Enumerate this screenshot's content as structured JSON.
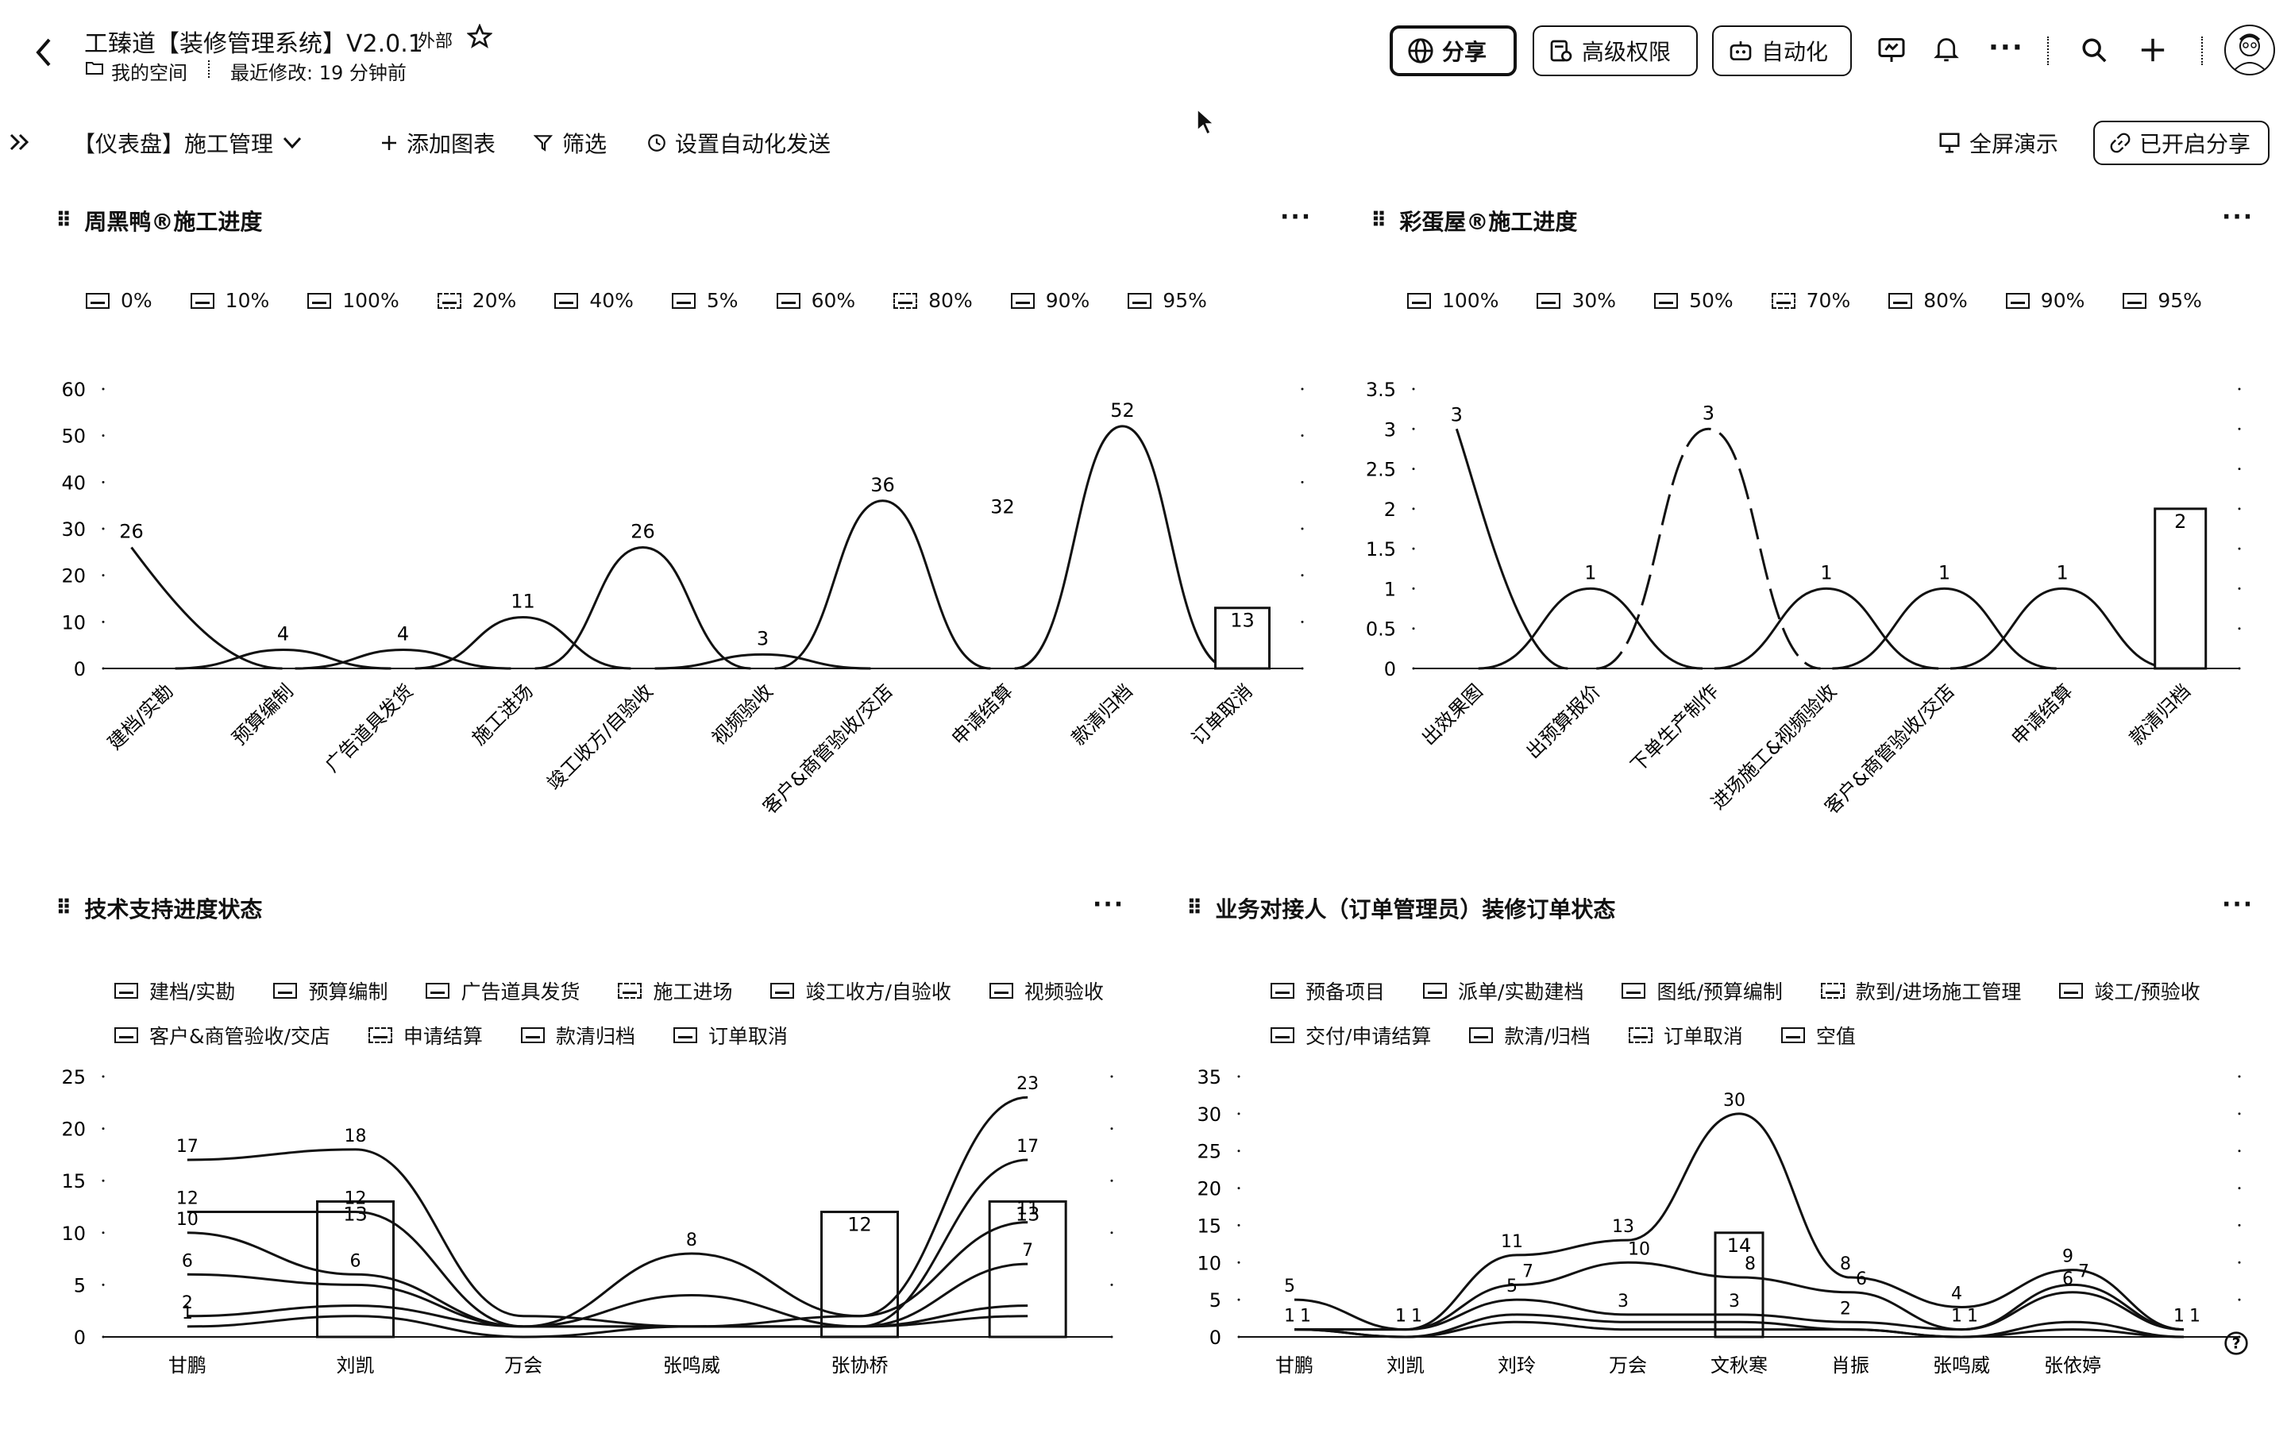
{
  "header": {
    "title": "工臻道【装修管理系统】V2.0.1",
    "tag": "外部",
    "space": "我的空间",
    "modified": "最近修改: 19 分钟前",
    "share_button": "分享",
    "permissions_button": "高级权限",
    "automation_button": "自动化"
  },
  "toolbar": {
    "dashboard_name": "【仪表盘】施工管理",
    "add_chart": "添加图表",
    "filter": "筛选",
    "auto_send": "设置自动化发送",
    "fullscreen": "全屏演示",
    "share_on": "已开启分享"
  },
  "panels": {
    "p1": {
      "title": "周黑鸭®施工进度",
      "legend": [
        "0%",
        "10%",
        "100%",
        "20%",
        "40%",
        "5%",
        "60%",
        "80%",
        "90%",
        "95%"
      ]
    },
    "p2": {
      "title": "彩蛋屋®施工进度",
      "legend": [
        "100%",
        "30%",
        "50%",
        "70%",
        "80%",
        "90%",
        "95%"
      ]
    },
    "p3": {
      "title": "技术支持进度状态",
      "legend": [
        "建档/实勘",
        "预算编制",
        "广告道具发货",
        "施工进场",
        "竣工收方/自验收",
        "视频验收",
        "客户&商管验收/交店",
        "申请结算",
        "款清归档",
        "订单取消"
      ]
    },
    "p4": {
      "title": "业务对接人（订单管理员）装修订单状态",
      "legend": [
        "预备项目",
        "派单/实勘建档",
        "图纸/预算编制",
        "款到/进场施工管理",
        "竣工/预验收",
        "交付/申请结算",
        "款清/归档",
        "订单取消",
        "空值"
      ]
    }
  },
  "chart_data": [
    {
      "type": "line",
      "title": "周黑鸭®施工进度",
      "categories": [
        "建档/实勘",
        "预算编制",
        "广告道具发货",
        "施工进场",
        "竣工收方/自验收",
        "视频验收",
        "客户&商管验收/交店",
        "申请结算",
        "款清归档",
        "订单取消"
      ],
      "ylim": [
        0,
        60
      ],
      "yticks": [
        0,
        10,
        20,
        30,
        40,
        50,
        60
      ],
      "peaks": [
        {
          "category": "建档/实勘",
          "value": 26
        },
        {
          "category": "预算编制",
          "value": 4
        },
        {
          "category": "广告道具发货",
          "value": 4
        },
        {
          "category": "施工进场",
          "value": 11
        },
        {
          "category": "竣工收方/自验收",
          "value": 26
        },
        {
          "category": "视频验收",
          "value": 3
        },
        {
          "category": "客户&商管验收/交店",
          "value": 36
        },
        {
          "category": "申请结算",
          "value": 32
        },
        {
          "category": "款清归档",
          "value": 52
        }
      ],
      "bar": {
        "category": "订单取消",
        "value": 13,
        "label": "13"
      }
    },
    {
      "type": "line",
      "title": "彩蛋屋®施工进度",
      "categories": [
        "出效果图",
        "出预算报价",
        "下单生产制作",
        "进场施工&视频验收",
        "客户&商管验收/交店",
        "申请结算",
        "款清归档"
      ],
      "ylim": [
        0,
        3.5
      ],
      "yticks": [
        0,
        0.5,
        1,
        1.5,
        2,
        2.5,
        3,
        3.5
      ],
      "peaks": [
        {
          "category": "出效果图",
          "value": 3
        },
        {
          "category": "出预算报价",
          "value": 1
        },
        {
          "category": "下单生产制作",
          "value": 3
        },
        {
          "category": "进场施工&视频验收",
          "value": 1
        },
        {
          "category": "客户&商管验收/交店",
          "value": 1
        },
        {
          "category": "申请结算",
          "value": 1
        }
      ],
      "bar": {
        "category": "款清归档",
        "value": 2,
        "label": "2"
      }
    },
    {
      "type": "line",
      "title": "技术支持进度状态",
      "categories": [
        "甘鹏",
        "刘凯",
        "万会",
        "张鸣威",
        "张协桥",
        ""
      ],
      "ylim": [
        0,
        25
      ],
      "yticks": [
        0,
        5,
        10,
        15,
        20,
        25
      ],
      "series": [
        {
          "values": [
            17,
            18,
            2,
            1,
            2,
            23
          ]
        },
        {
          "values": [
            12,
            12,
            1,
            4,
            1,
            17
          ]
        },
        {
          "values": [
            10,
            6,
            1,
            8,
            2,
            11
          ]
        },
        {
          "values": [
            6,
            5,
            1,
            1,
            1,
            7
          ]
        },
        {
          "values": [
            2,
            3,
            1,
            1,
            1,
            3
          ]
        },
        {
          "values": [
            1,
            2,
            0,
            1,
            1,
            2
          ]
        }
      ],
      "bars": [
        {
          "category": "刘凯",
          "value": 13,
          "label": "13"
        },
        {
          "category": "张协桥",
          "value": 12,
          "label": "12"
        },
        {
          "category": "",
          "value": 13,
          "label": "13"
        }
      ],
      "extra_labels": [
        "17",
        "18",
        "12",
        "12",
        "10",
        "6",
        "2",
        "8",
        "4",
        "1",
        "1",
        "23",
        "17"
      ]
    },
    {
      "type": "line",
      "title": "业务对接人（订单管理员）装修订单状态",
      "categories": [
        "甘鹏",
        "刘凯",
        "刘玲",
        "万会",
        "文秋寒",
        "肖振",
        "张鸣威",
        "张依婷",
        ""
      ],
      "ylim": [
        0,
        35
      ],
      "yticks": [
        0,
        5,
        10,
        15,
        20,
        25,
        30,
        35
      ],
      "series": [
        {
          "values": [
            5,
            1,
            11,
            13,
            30,
            8,
            4,
            9,
            1
          ]
        },
        {
          "values": [
            1,
            1,
            7,
            10,
            8,
            6,
            1,
            7,
            1
          ]
        },
        {
          "values": [
            1,
            1,
            5,
            3,
            3,
            2,
            1,
            6,
            1
          ]
        },
        {
          "values": [
            1,
            0,
            3,
            2,
            2,
            1,
            0,
            2,
            0
          ]
        },
        {
          "values": [
            1,
            0,
            2,
            1,
            1,
            1,
            0,
            1,
            0
          ]
        }
      ],
      "bars": [
        {
          "category": "文秋寒",
          "value": 14,
          "label": "14"
        }
      ]
    }
  ]
}
